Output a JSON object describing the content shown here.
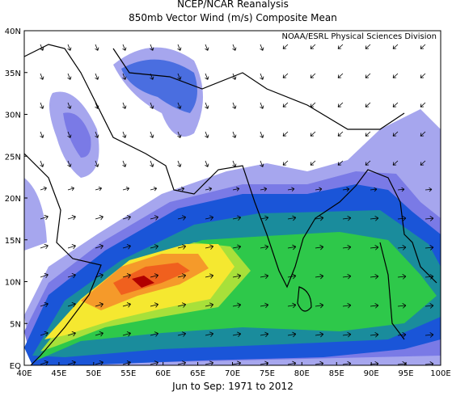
{
  "header": {
    "title": "NCEP/NCAR Reanalysis",
    "subtitle": "850mb Vector Wind (m/s) Composite Mean"
  },
  "map": {
    "attribution": "NOAA/ESRL Physical Sciences Division"
  },
  "axes": {
    "lat_labels": [
      "40N",
      "35N",
      "30N",
      "25N",
      "20N",
      "15N",
      "10N",
      "5N",
      "EQ"
    ],
    "lon_labels": [
      "40E",
      "45E",
      "50E",
      "55E",
      "60E",
      "65E",
      "70E",
      "75E",
      "80E",
      "85E",
      "90E",
      "95E",
      "100E"
    ]
  },
  "footer": {
    "period": "Jun to Sep: 1971 to 2012"
  }
}
